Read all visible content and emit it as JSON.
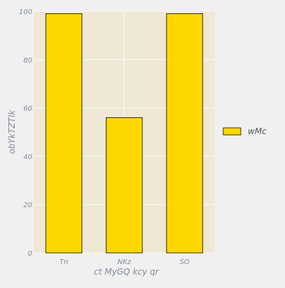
{
  "chart_data": {
    "type": "bar",
    "title": "",
    "xlabel": "ct MyGQ kcy qr",
    "ylabel": "obYkTZTIk",
    "categories": [
      "Tn",
      "NKz",
      "SO"
    ],
    "series": [
      {
        "name": "wMc",
        "values": [
          99,
          56,
          99
        ]
      }
    ],
    "ylim": [
      0,
      100
    ],
    "yticks": [
      0,
      20,
      40,
      60,
      80,
      100
    ],
    "grid": true,
    "legend_position": "right"
  },
  "colors": {
    "figure_background": "#f0f0f0",
    "plot_background": "#eee8d5",
    "bar_fill": "#ffd700",
    "bar_edge": "#000000",
    "grid": "#ffffff",
    "text": "#7f8c9b"
  }
}
